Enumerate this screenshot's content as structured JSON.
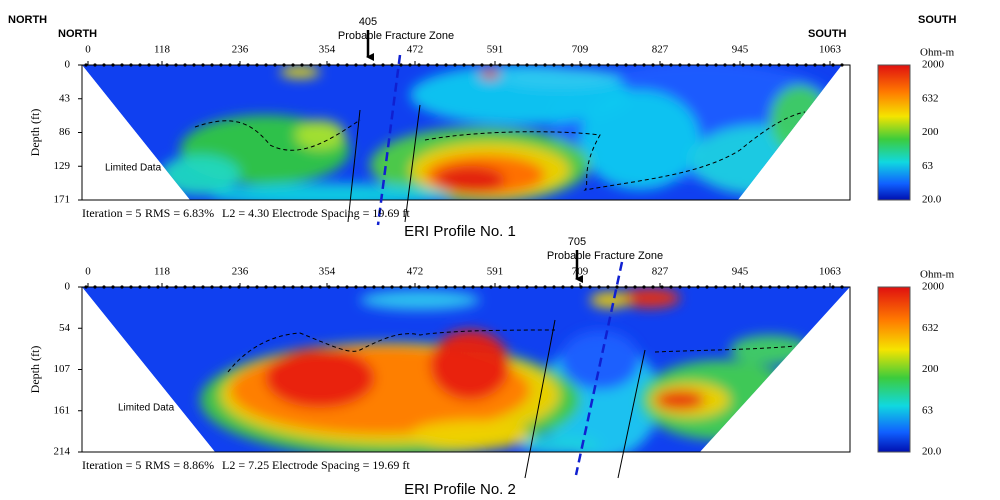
{
  "corner_labels": {
    "left": "NORTH",
    "right": "SOUTH"
  },
  "color_scale": {
    "unit": "Ohm-m",
    "ticks": [
      "2000",
      "632",
      "200",
      "63",
      "20.0"
    ]
  },
  "profiles": [
    {
      "caption": "ERI Profile No. 1",
      "side_labels": {
        "left": "NORTH",
        "right": "SOUTH"
      },
      "x_ticks": [
        0,
        118,
        236,
        354,
        472,
        591,
        709,
        827,
        945,
        1063
      ],
      "y_label": "Depth (ft)",
      "y_ticks": [
        0,
        43,
        86,
        129,
        171
      ],
      "marker": {
        "value": "405",
        "label": "Probable Fracture Zone"
      },
      "note": "Limited Data",
      "stats": [
        "Iteration = 5",
        "RMS = 6.83%",
        "L2 = 4.30",
        "Electrode Spacing = 19.69 ft"
      ]
    },
    {
      "caption": "ERI Profile No. 2",
      "x_ticks": [
        0,
        118,
        236,
        354,
        472,
        591,
        709,
        827,
        945,
        1063
      ],
      "y_label": "Depth (ft)",
      "y_ticks": [
        0,
        54,
        107,
        161,
        214
      ],
      "marker": {
        "value": "705",
        "label": "Probable Fracture Zone"
      },
      "note": "Limited Data",
      "stats": [
        "Iteration = 5",
        "RMS = 8.86%",
        "L2 = 7.25",
        "Electrode Spacing = 19.69 ft"
      ]
    }
  ]
}
